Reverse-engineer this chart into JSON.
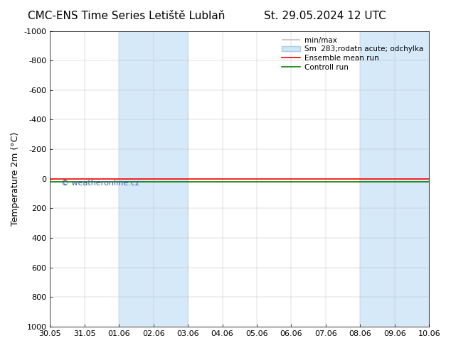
{
  "title_left": "CMC-ENS Time Series Letiště Lublaň",
  "title_right": "St. 29.05.2024 12 UTC",
  "ylabel": "Temperature 2m (°C)",
  "watermark": "© weatheronline.cz",
  "ylim_bottom": 1000,
  "ylim_top": -1000,
  "yticks": [
    -1000,
    -800,
    -600,
    -400,
    -200,
    0,
    200,
    400,
    600,
    800,
    1000
  ],
  "x_start": 0,
  "x_end": 11,
  "xtick_positions": [
    0,
    1,
    2,
    3,
    4,
    5,
    6,
    7,
    8,
    9,
    10,
    11
  ],
  "xtick_labels": [
    "30.05",
    "31.05",
    "01.06",
    "02.06",
    "03.06",
    "04.06",
    "05.06",
    "06.06",
    "07.06",
    "08.06",
    "09.06",
    "10.06"
  ],
  "blue_bands": [
    {
      "start": 2,
      "end": 4
    },
    {
      "start": 9,
      "end": 11
    }
  ],
  "blue_band_color": "#d6e9f8",
  "ensemble_mean_y": 0,
  "ensemble_mean_color": "#ff0000",
  "control_run_y": 20,
  "control_run_color": "#008000",
  "watermark_color": "#3a5fa8",
  "background_color": "#ffffff",
  "plot_bg_color": "#ffffff",
  "title_fontsize": 11,
  "axis_fontsize": 9,
  "tick_fontsize": 8,
  "legend_minmax_color": "#c0c0c0",
  "legend_sm_color": "#d0e8f5",
  "legend_ensemble_color": "#ff0000",
  "legend_control_color": "#008000"
}
